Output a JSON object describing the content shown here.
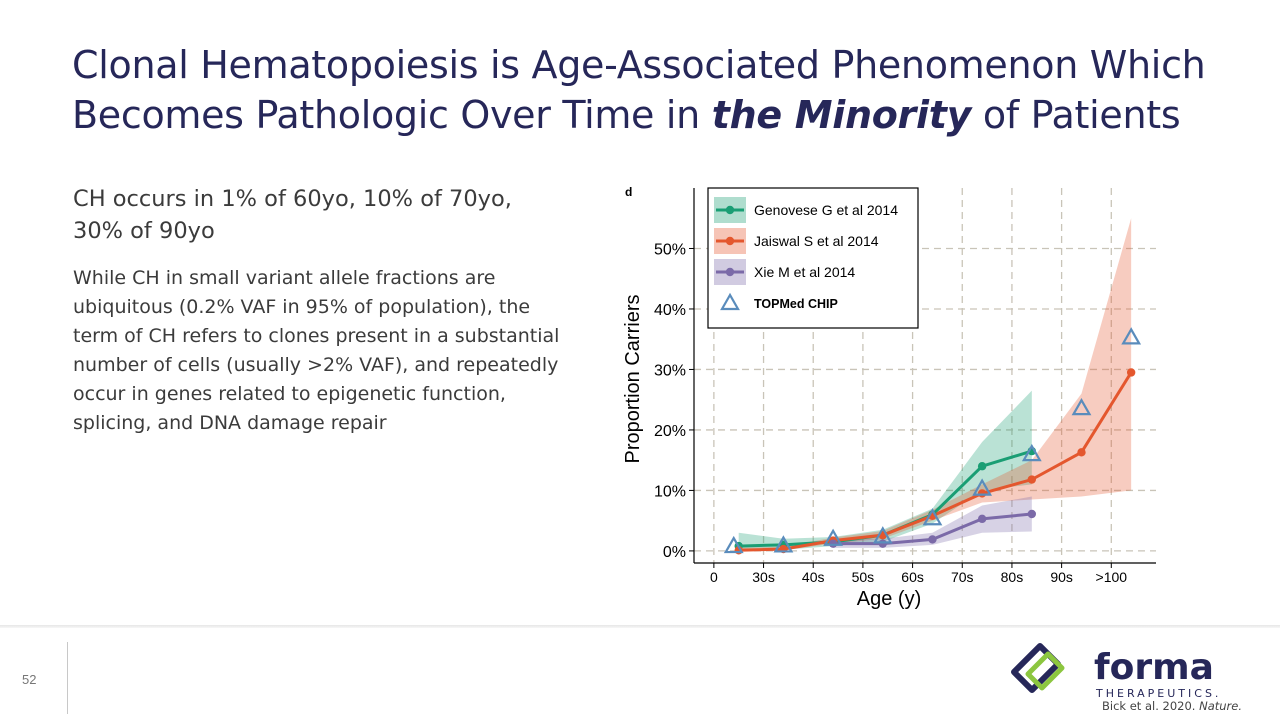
{
  "slide": {
    "title_line1": "Clonal Hematopoiesis is Age-Associated Phenomenon Which",
    "title_line2_prefix": "Becomes Pathologic Over Time in ",
    "title_line2_emphasis": "the Minority",
    "title_line2_suffix": " of Patients",
    "lead": "CH occurs in 1% of 60yo, 10% of 70yo, 30% of 90yo",
    "body": "While CH in small variant allele fractions are ubiquitous (0.2% VAF in 95% of population), the term of CH refers to clones present in a substantial number of cells (usually >2% VAF), and repeatedly occur in genes related to epigenetic function, splicing, and DNA damage repair",
    "page_number": "52",
    "citation_authors": "Bick et al. 2020. ",
    "citation_journal": "Nature."
  },
  "logo": {
    "wordmark": "forma",
    "tagline": "THERAPEUTICS.",
    "color_navy": "#262759",
    "color_green": "#8cc63f"
  },
  "chart_data": {
    "type": "line",
    "panel_label": "d",
    "xlabel": "Age (y)",
    "ylabel": "Proportion Carriers",
    "categories": [
      "0",
      "30s",
      "40s",
      "50s",
      "60s",
      "70s",
      "80s",
      "90s",
      ">100"
    ],
    "yticks": [
      "0%",
      "10%",
      "20%",
      "30%",
      "40%",
      "50%"
    ],
    "ylim": [
      -2,
      60
    ],
    "grid": true,
    "legend_position": "top-left",
    "series": [
      {
        "name": "Genovese G et al 2014",
        "color": "#1a9e74",
        "x": [
          0.5,
          1.4,
          2.4,
          3.4,
          4.4,
          5.4,
          6.4
        ],
        "values": [
          0.8,
          1.0,
          1.5,
          2.6,
          6.0,
          14.0,
          16.5
        ],
        "ci_low": [
          0.0,
          0.2,
          0.8,
          1.5,
          4.5,
          10.0,
          11.0
        ],
        "ci_high": [
          3.0,
          2.0,
          2.3,
          3.5,
          7.0,
          18.0,
          26.5
        ]
      },
      {
        "name": "Jaiswal S et al 2014",
        "color": "#e4572e",
        "x": [
          0.5,
          1.4,
          2.4,
          3.4,
          4.4,
          5.4,
          6.4,
          7.4,
          8.4
        ],
        "values": [
          0.1,
          0.3,
          1.7,
          2.6,
          5.8,
          9.5,
          11.8,
          16.3,
          29.5
        ],
        "ci_low": [
          0.0,
          0.1,
          1.2,
          2.0,
          5.0,
          8.0,
          8.5,
          9.0,
          10.0
        ],
        "ci_high": [
          0.5,
          0.7,
          2.2,
          3.3,
          6.8,
          11.0,
          15.0,
          26.0,
          55.0
        ]
      },
      {
        "name": "Xie M et al 2014",
        "color": "#7b6aa8",
        "x": [
          2.4,
          3.4,
          4.4,
          5.4,
          6.4
        ],
        "values": [
          1.2,
          1.2,
          1.9,
          5.3,
          6.1
        ],
        "ci_low": [
          0.5,
          0.5,
          1.0,
          3.0,
          3.2
        ],
        "ci_high": [
          2.0,
          2.0,
          3.0,
          7.5,
          9.0
        ]
      },
      {
        "name": "TOPMed CHIP",
        "color": "#5a8cbc",
        "marker": "triangle",
        "x": [
          0.4,
          1.4,
          2.4,
          3.4,
          4.4,
          5.4,
          6.4,
          7.4,
          8.4
        ],
        "values": [
          0.8,
          0.9,
          2.0,
          2.4,
          5.4,
          10.3,
          16.0,
          23.6,
          35.3
        ]
      }
    ]
  }
}
